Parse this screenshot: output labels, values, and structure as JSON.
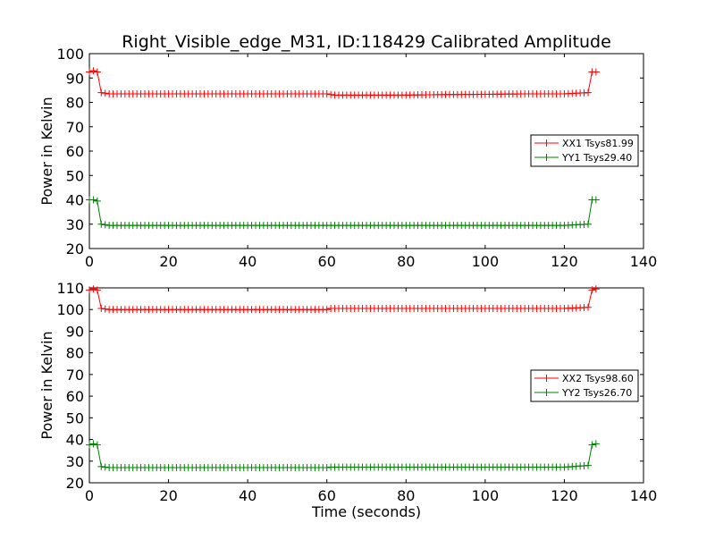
{
  "figure": {
    "title": "Right_Visible_edge_M31, ID:118429 Calibrated Amplitude"
  },
  "chart_data": [
    {
      "type": "line",
      "xlabel": "",
      "ylabel": "Power in Kelvin",
      "xlim": [
        0,
        140
      ],
      "ylim": [
        20,
        100
      ],
      "xticks": [
        "0",
        "20",
        "40",
        "60",
        "80",
        "100",
        "120",
        "140"
      ],
      "yticks": [
        "20",
        "30",
        "40",
        "50",
        "60",
        "70",
        "80",
        "90",
        "100"
      ],
      "grid": false,
      "marker": "+",
      "legend_position": "right",
      "x": [
        0,
        1,
        2,
        3,
        5,
        10,
        20,
        30,
        40,
        50,
        60,
        61,
        62,
        70,
        80,
        90,
        100,
        110,
        120,
        126,
        127,
        128
      ],
      "series": [
        {
          "name": "XX1 Tsys81.99",
          "color": "#ff0000",
          "values": [
            92.5,
            93,
            92.5,
            84,
            83.5,
            83.5,
            83.5,
            83.5,
            83.5,
            83.5,
            83.5,
            83.2,
            83,
            83,
            83,
            83.2,
            83.3,
            83.5,
            83.5,
            84,
            92.5,
            92.5
          ]
        },
        {
          "name": "YY1 Tsys29.40",
          "color": "#008000",
          "values": [
            40,
            40,
            39.5,
            30,
            29.5,
            29.5,
            29.5,
            29.5,
            29.5,
            29.5,
            29.5,
            29.5,
            29.5,
            29.5,
            29.5,
            29.5,
            29.5,
            29.5,
            29.5,
            30,
            40,
            40
          ]
        }
      ]
    },
    {
      "type": "line",
      "xlabel": "Time (seconds)",
      "ylabel": "Power in Kelvin",
      "xlim": [
        0,
        140
      ],
      "ylim": [
        20,
        110
      ],
      "xticks": [
        "0",
        "20",
        "40",
        "60",
        "80",
        "100",
        "120",
        "140"
      ],
      "yticks": [
        "20",
        "30",
        "40",
        "50",
        "60",
        "70",
        "80",
        "90",
        "100",
        "110"
      ],
      "grid": false,
      "marker": "+",
      "legend_position": "right",
      "x": [
        0,
        1,
        2,
        3,
        5,
        10,
        20,
        30,
        40,
        50,
        60,
        61,
        62,
        70,
        80,
        90,
        100,
        110,
        120,
        126,
        127,
        128
      ],
      "series": [
        {
          "name": "XX2 Tsys98.60",
          "color": "#ff0000",
          "values": [
            109,
            109.5,
            109,
            100.5,
            100,
            100,
            100,
            100,
            100,
            100,
            100,
            100.5,
            100.5,
            100.5,
            100.5,
            100.5,
            100.5,
            100.5,
            100.5,
            101,
            109,
            109.5
          ]
        },
        {
          "name": "YY2 Tsys26.70",
          "color": "#008000",
          "values": [
            37.5,
            38,
            37.5,
            27.5,
            27,
            27,
            27,
            27,
            27,
            27,
            27,
            27.2,
            27.2,
            27.2,
            27.2,
            27.2,
            27.2,
            27.2,
            27.2,
            28,
            37.5,
            38
          ]
        }
      ]
    }
  ]
}
